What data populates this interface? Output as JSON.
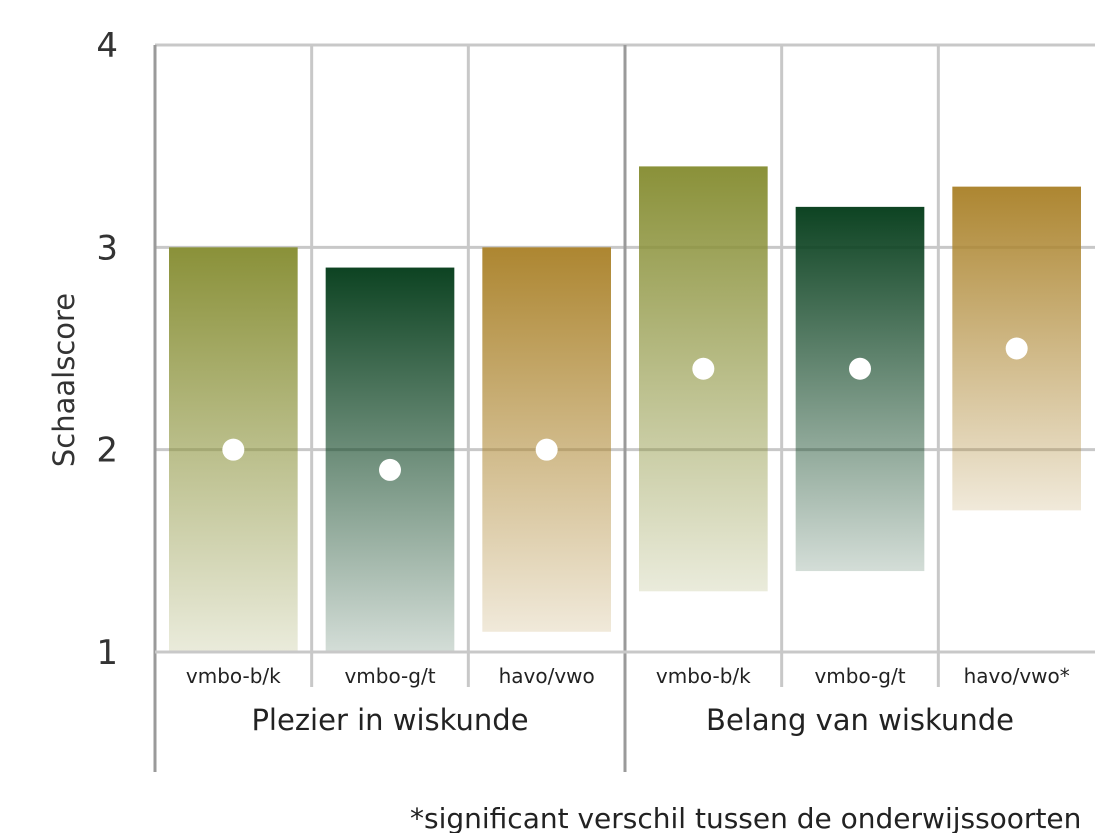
{
  "chart_data": {
    "type": "bar",
    "ylabel": "Schaalscore",
    "ylim": [
      1,
      4
    ],
    "yticks": [
      1,
      2,
      3,
      4
    ],
    "grid": true,
    "groups": [
      {
        "label": "Plezier in wiskunde",
        "bars": [
          {
            "category": "vmbo-b/k",
            "low": 1.0,
            "high": 3.0,
            "mean": 2.0,
            "color": "#8a9139"
          },
          {
            "category": "vmbo-g/t",
            "low": 1.0,
            "high": 2.9,
            "mean": 1.9,
            "color": "#0d4322"
          },
          {
            "category": "havo/vwo",
            "low": 1.1,
            "high": 3.0,
            "mean": 2.0,
            "color": "#ad8631"
          }
        ]
      },
      {
        "label": "Belang van wiskunde",
        "bars": [
          {
            "category": "vmbo-b/k",
            "low": 1.3,
            "high": 3.4,
            "mean": 2.4,
            "color": "#8a9139"
          },
          {
            "category": "vmbo-g/t",
            "low": 1.4,
            "high": 3.2,
            "mean": 2.4,
            "color": "#0d4322"
          },
          {
            "category": "havo/vwo*",
            "low": 1.7,
            "high": 3.3,
            "mean": 2.5,
            "color": "#ad8631"
          }
        ]
      }
    ],
    "footnote": "*significant verschil tussen de onderwijssoorten"
  },
  "colors": {
    "grid": "#c8c8c8",
    "axis": "#9a9a9a",
    "marker": "#ffffff"
  }
}
